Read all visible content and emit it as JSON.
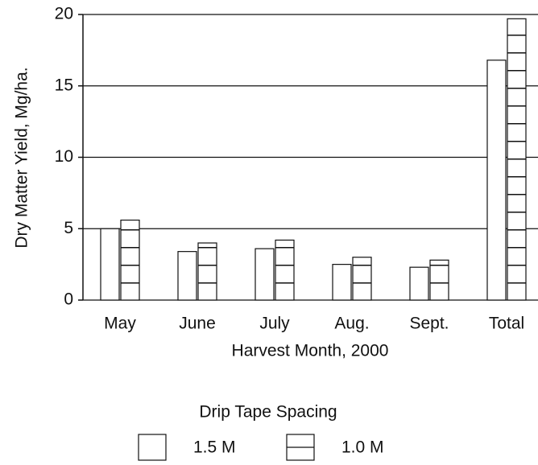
{
  "chart_data": {
    "type": "bar",
    "ylabel": "Dry Matter Yield, Mg/ha.",
    "xlabel": "Harvest Month, 2000",
    "legend_title": "Drip Tape Spacing",
    "categories": [
      "May",
      "June",
      "July",
      "Aug.",
      "Sept.",
      "Total"
    ],
    "series": [
      {
        "name": "1.5 M",
        "color": "#ffffff",
        "pattern": "none",
        "values": [
          5.0,
          3.4,
          3.6,
          2.5,
          2.3,
          16.8
        ]
      },
      {
        "name": "1.0 M",
        "color": "#ffffff",
        "pattern": "horizontal-lines",
        "values": [
          5.6,
          4.0,
          4.2,
          3.0,
          2.8,
          19.7
        ]
      }
    ],
    "ylim": [
      0,
      20
    ],
    "yticks": [
      0,
      5,
      10,
      15,
      20
    ],
    "grid": true,
    "legend": "bottom"
  }
}
